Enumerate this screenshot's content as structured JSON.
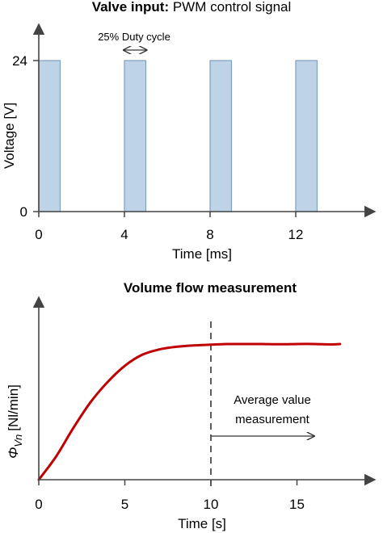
{
  "chart_data": [
    {
      "type": "bar",
      "title_bold": "Valve input:",
      "title_rest": " PWM control signal",
      "xlabel": "Time [ms]",
      "ylabel": "Voltage [V]",
      "x_ticks": [
        "0",
        "4",
        "8",
        "12"
      ],
      "y_ticks": [
        "0",
        "24"
      ],
      "xlim": [
        0,
        15.5
      ],
      "ylim": [
        0,
        24
      ],
      "period_ms": 4,
      "duty_cycle_pct": 25,
      "pulses": [
        {
          "start": 0,
          "end": 1,
          "value": 24
        },
        {
          "start": 4,
          "end": 5,
          "value": 24
        },
        {
          "start": 8,
          "end": 9,
          "value": 24
        },
        {
          "start": 12,
          "end": 13,
          "value": 24
        }
      ],
      "annotation": "25% Duty cycle",
      "colors": {
        "pulse_fill": "#bed3e6",
        "pulse_stroke": "#7f9fbf",
        "axis": "#444444"
      }
    },
    {
      "type": "line",
      "title": "Volume flow measurement",
      "xlabel": "Time [s]",
      "ylabel": "Φ_Vn [Nl/min]",
      "ylabel_main": "Φ",
      "ylabel_sub": "Vn",
      "ylabel_unit": "[Nl/min]",
      "x_ticks": [
        "0",
        "5",
        "10",
        "15"
      ],
      "xlim": [
        0,
        19
      ],
      "ylim": [
        0,
        1
      ],
      "x": [
        0,
        1,
        2,
        3,
        4,
        5,
        6,
        7,
        8,
        9,
        10,
        11,
        12,
        13,
        14,
        15,
        16,
        17,
        17.5
      ],
      "y": [
        0,
        0.17,
        0.38,
        0.57,
        0.72,
        0.84,
        0.92,
        0.96,
        0.98,
        0.99,
        0.995,
        1.0,
        1.0,
        1.0,
        0.998,
        1.0,
        1.0,
        0.997,
        1.0
      ],
      "marker_x": 10,
      "annotation_lines": [
        "Average value",
        "measurement"
      ],
      "annotation_arrow_x": [
        10,
        16
      ],
      "colors": {
        "line": "#c00000",
        "axis": "#444444",
        "marker": "#333333"
      }
    }
  ]
}
